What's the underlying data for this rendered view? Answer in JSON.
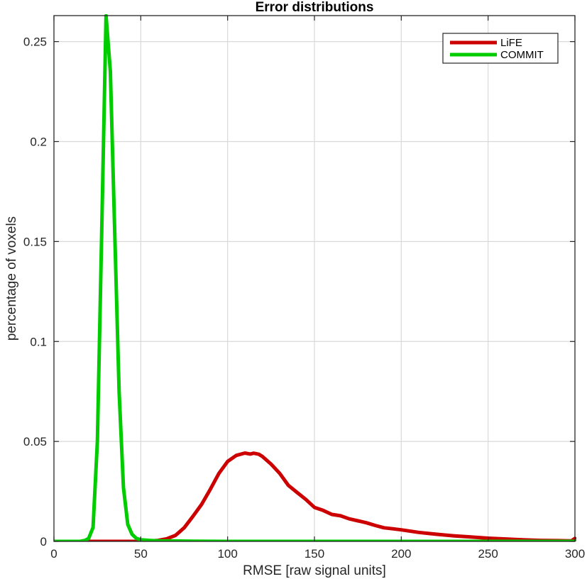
{
  "chart_data": {
    "type": "line",
    "title": "Error distributions",
    "xlabel": "RMSE [raw signal units]",
    "ylabel": "percentage of voxels",
    "xlim": [
      0,
      300
    ],
    "ylim": [
      0,
      0.263
    ],
    "xticks": [
      0,
      50,
      100,
      150,
      200,
      250,
      300
    ],
    "yticks": [
      0,
      0.05,
      0.1,
      0.15,
      0.2,
      0.25
    ],
    "xtick_labels": [
      "0",
      "50",
      "100",
      "150",
      "200",
      "250",
      "300"
    ],
    "ytick_labels": [
      "0",
      "0.05",
      "0.1",
      "0.15",
      "0.2",
      "0.25"
    ],
    "grid": true,
    "legend_position": "top-right",
    "series": [
      {
        "name": "LiFE",
        "color": "#cc0000",
        "x": [
          0,
          50,
          55,
          60,
          65,
          70,
          75,
          80,
          85,
          90,
          95,
          100,
          105,
          110,
          113,
          115,
          118,
          120,
          125,
          130,
          135,
          140,
          145,
          150,
          155,
          160,
          165,
          170,
          175,
          180,
          185,
          190,
          195,
          200,
          210,
          220,
          230,
          240,
          250,
          260,
          270,
          280,
          290,
          298,
          300
        ],
        "y": [
          0,
          0,
          0.0002,
          0.0005,
          0.0013,
          0.003,
          0.0068,
          0.0125,
          0.0185,
          0.026,
          0.034,
          0.04,
          0.043,
          0.0442,
          0.0437,
          0.0441,
          0.0436,
          0.0425,
          0.0387,
          0.034,
          0.028,
          0.0245,
          0.021,
          0.017,
          0.0155,
          0.0135,
          0.0128,
          0.0113,
          0.0103,
          0.0093,
          0.008,
          0.0068,
          0.0063,
          0.0058,
          0.0045,
          0.0036,
          0.0028,
          0.0022,
          0.0016,
          0.0012,
          0.0008,
          0.0005,
          0.0004,
          0.0003,
          0.0015
        ]
      },
      {
        "name": "COMMIT",
        "color": "#00cc00",
        "x": [
          0,
          15,
          18,
          20,
          22.5,
          25,
          27.5,
          30,
          32.5,
          35,
          37.5,
          40,
          42.5,
          45,
          47.5,
          50,
          55,
          60,
          70,
          80,
          100,
          150,
          200,
          250,
          300
        ],
        "y": [
          0,
          0,
          0.0005,
          0.0015,
          0.007,
          0.05,
          0.155,
          0.263,
          0.235,
          0.155,
          0.075,
          0.027,
          0.0085,
          0.0035,
          0.0015,
          0.0008,
          0.0005,
          0.0003,
          0.0002,
          0.0001,
          0,
          0,
          0,
          0,
          0
        ]
      }
    ]
  }
}
